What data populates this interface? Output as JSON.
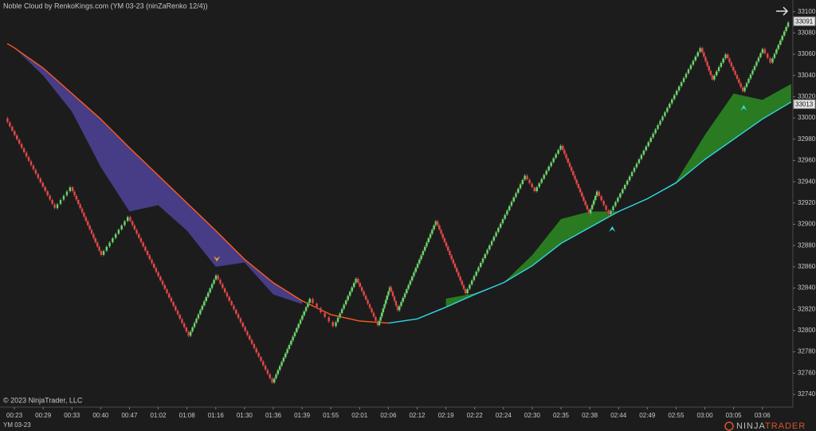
{
  "chart_data": {
    "type": "renko",
    "title": "Noble Cloud by RenkoKings.com (YM 03-23 (ninZaRenko 12/4))",
    "copyright": "© 2023 NinjaTrader, LLC",
    "instrument": "YM 03-23",
    "logo": {
      "first": "NINJA",
      "second": "TRADER"
    },
    "xlim": [
      -0.5,
      27.06
    ],
    "ylim": [
      32728,
      33111
    ],
    "xticks": [
      {
        "value": 0,
        "label": "00:23"
      },
      {
        "value": 1,
        "label": "00:29"
      },
      {
        "value": 2,
        "label": "00:33"
      },
      {
        "value": 3,
        "label": "00:40"
      },
      {
        "value": 4,
        "label": "00:47"
      },
      {
        "value": 5,
        "label": "01:02"
      },
      {
        "value": 6,
        "label": "01:08"
      },
      {
        "value": 7,
        "label": "01:16"
      },
      {
        "value": 8,
        "label": "01:30"
      },
      {
        "value": 9,
        "label": "01:36"
      },
      {
        "value": 10,
        "label": "01:39"
      },
      {
        "value": 11,
        "label": "01:55"
      },
      {
        "value": 12,
        "label": "02:01"
      },
      {
        "value": 13,
        "label": "02:06"
      },
      {
        "value": 14,
        "label": "02:12"
      },
      {
        "value": 15,
        "label": "02:19"
      },
      {
        "value": 16,
        "label": "02:22"
      },
      {
        "value": 17,
        "label": "02:24"
      },
      {
        "value": 18,
        "label": "02:30"
      },
      {
        "value": 19,
        "label": "02:35"
      },
      {
        "value": 20,
        "label": "02:38"
      },
      {
        "value": 21,
        "label": "02:44"
      },
      {
        "value": 22,
        "label": "02:49"
      },
      {
        "value": 23,
        "label": "02:55"
      },
      {
        "value": 24,
        "label": "03:00"
      },
      {
        "value": 25,
        "label": "03:05"
      },
      {
        "value": 26,
        "label": "03:06"
      }
    ],
    "yticks": [
      32740,
      32760,
      32780,
      32800,
      32820,
      32840,
      32860,
      32880,
      32900,
      32920,
      32940,
      32960,
      32980,
      33000,
      33020,
      33040,
      33060,
      33080,
      33100
    ],
    "price_markers": [
      33091,
      33013
    ],
    "price": {
      "up_color": "#6fd36f",
      "down_color": "#e04a4a",
      "x": [
        -0.28,
        1.44,
        1.99,
        3.05,
        3.99,
        6.09,
        7.04,
        9.0,
        10.3,
        11.14,
        11.91,
        12.66,
        13.07,
        13.35,
        14.68,
        15.71,
        17.78,
        18.12,
        19.03,
        20.0,
        20.28,
        20.69,
        23.88,
        24.29,
        24.76,
        25.35,
        26.04,
        26.32,
        26.93
      ],
      "values": [
        33000,
        32915,
        32935,
        32871,
        32907,
        32795,
        32852,
        32751,
        32830,
        32804,
        32849,
        32805,
        32841,
        32819,
        32903,
        32835,
        32946,
        32931,
        32974,
        32910,
        32931,
        32909,
        33066,
        33036,
        33060,
        33025,
        33065,
        33052,
        33090
      ]
    },
    "ma": [
      {
        "color": "#ff5a1f",
        "cloud_color": "#463d86",
        "x": [
          -0.25,
          0,
          1,
          2,
          3,
          4,
          5,
          6,
          7,
          8,
          9,
          10,
          11,
          12,
          13,
          14,
          15,
          16,
          17,
          18,
          19,
          20,
          21,
          22,
          23,
          24,
          25,
          26,
          27
        ],
        "values": [
          33070,
          33066,
          33047,
          33023,
          32999,
          32972,
          32946,
          32920,
          32894,
          32867,
          32845,
          32828,
          32815,
          32809,
          32807,
          null,
          null,
          null,
          null,
          null,
          null,
          null,
          null,
          null,
          null,
          null,
          null,
          null,
          null
        ],
        "cloud": [
          33070,
          33066,
          33040,
          33006,
          32954,
          32912,
          32918,
          32894,
          32860,
          32864,
          32834,
          32825,
          null,
          null,
          null,
          null,
          null,
          null,
          null,
          null,
          null,
          null,
          null,
          null,
          null,
          null,
          null,
          null,
          null
        ]
      },
      {
        "color": "#2fd8e6",
        "cloud_color": "#2a7a22",
        "x": [
          -0.25,
          0,
          1,
          2,
          3,
          4,
          5,
          6,
          7,
          8,
          9,
          10,
          11,
          12,
          13,
          14,
          15,
          16,
          17,
          18,
          19,
          20,
          21,
          22,
          23,
          24,
          25,
          26,
          27
        ],
        "values": [
          null,
          null,
          null,
          null,
          null,
          null,
          null,
          null,
          null,
          null,
          null,
          null,
          null,
          null,
          32807,
          32811,
          32822,
          32834,
          32845,
          32861,
          32882,
          32897,
          32912,
          32924,
          32939,
          32961,
          32980,
          32999,
          33015
        ],
        "cloud": [
          null,
          null,
          null,
          null,
          null,
          null,
          null,
          null,
          null,
          null,
          null,
          null,
          null,
          null,
          null,
          null,
          32830,
          32835,
          32845,
          32871,
          32905,
          32912,
          32912,
          32924,
          32940,
          32984,
          33023,
          33017,
          33032
        ]
      }
    ],
    "signals": [
      {
        "x": 7.04,
        "value": 32867,
        "color": "#f0a020",
        "direction": "down"
      },
      {
        "x": 20.78,
        "value": 32896,
        "color": "#2de0e0",
        "direction": "up"
      },
      {
        "x": 25.35,
        "value": 33010,
        "color": "#2de0e0",
        "direction": "up"
      }
    ]
  }
}
